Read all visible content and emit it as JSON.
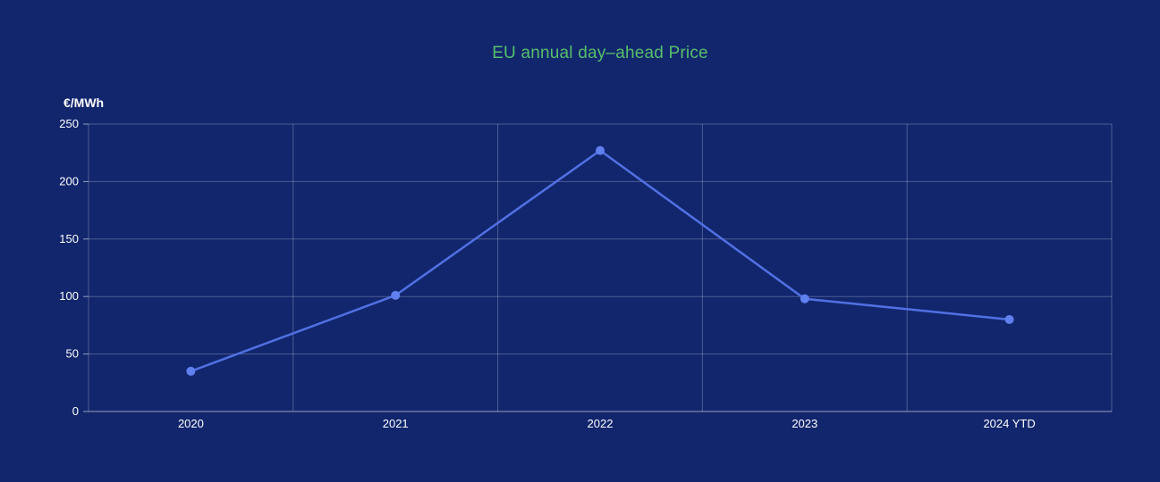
{
  "chart_data": {
    "type": "line",
    "title": "EU annual day–ahead Price",
    "ylabel": "€/MWh",
    "xlabel": "",
    "categories": [
      "2020",
      "2021",
      "2022",
      "2023",
      "2024 YTD"
    ],
    "values": [
      35,
      101,
      227,
      98,
      80
    ],
    "ylim": [
      0,
      250
    ],
    "ytick_step": 50,
    "yticks": [
      "0",
      "50",
      "100",
      "150",
      "200",
      "250"
    ],
    "grid": true,
    "legend": "none",
    "colors": {
      "background": "#12266e",
      "title": "#55bf6a",
      "line": "#5171e2",
      "point": "#6080ef",
      "grid": "rgba(255,255,255,0.25)",
      "axis": "rgba(255,255,255,0.55)",
      "tick_text": "#ffffff"
    }
  }
}
